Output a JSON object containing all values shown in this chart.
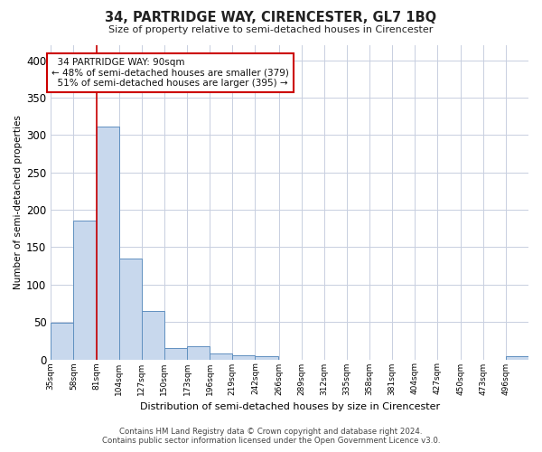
{
  "title": "34, PARTRIDGE WAY, CIRENCESTER, GL7 1BQ",
  "subtitle": "Size of property relative to semi-detached houses in Cirencester",
  "xlabel": "Distribution of semi-detached houses by size in Cirencester",
  "ylabel": "Number of semi-detached properties",
  "footer_line1": "Contains HM Land Registry data © Crown copyright and database right 2024.",
  "footer_line2": "Contains public sector information licensed under the Open Government Licence v3.0.",
  "annotation_title": "34 PARTRIDGE WAY: 90sqm",
  "annotation_line1": "← 48% of semi-detached houses are smaller (379)",
  "annotation_line2": "51% of semi-detached houses are larger (395) →",
  "property_size_idx": 2,
  "bar_color": "#c8d8ed",
  "bar_edge_color": "#6090c0",
  "vline_color": "#cc0000",
  "grid_color": "#c8cfe0",
  "bg_color": "#ffffff",
  "categories": [
    "35sqm",
    "58sqm",
    "81sqm",
    "104sqm",
    "127sqm",
    "150sqm",
    "173sqm",
    "196sqm",
    "219sqm",
    "242sqm",
    "266sqm",
    "289sqm",
    "312sqm",
    "335sqm",
    "358sqm",
    "381sqm",
    "404sqm",
    "427sqm",
    "450sqm",
    "473sqm",
    "496sqm"
  ],
  "values": [
    49,
    185,
    311,
    135,
    65,
    15,
    18,
    8,
    5,
    4,
    0,
    0,
    0,
    0,
    0,
    0,
    0,
    0,
    0,
    0,
    4
  ],
  "bin_edges": [
    35,
    58,
    81,
    104,
    127,
    150,
    173,
    196,
    219,
    242,
    266,
    289,
    312,
    335,
    358,
    381,
    404,
    427,
    450,
    473,
    496,
    519
  ],
  "ylim": [
    0,
    420
  ],
  "yticks": [
    0,
    50,
    100,
    150,
    200,
    250,
    300,
    350,
    400
  ],
  "annotation_box_color": "white",
  "annotation_box_edge": "#cc0000"
}
